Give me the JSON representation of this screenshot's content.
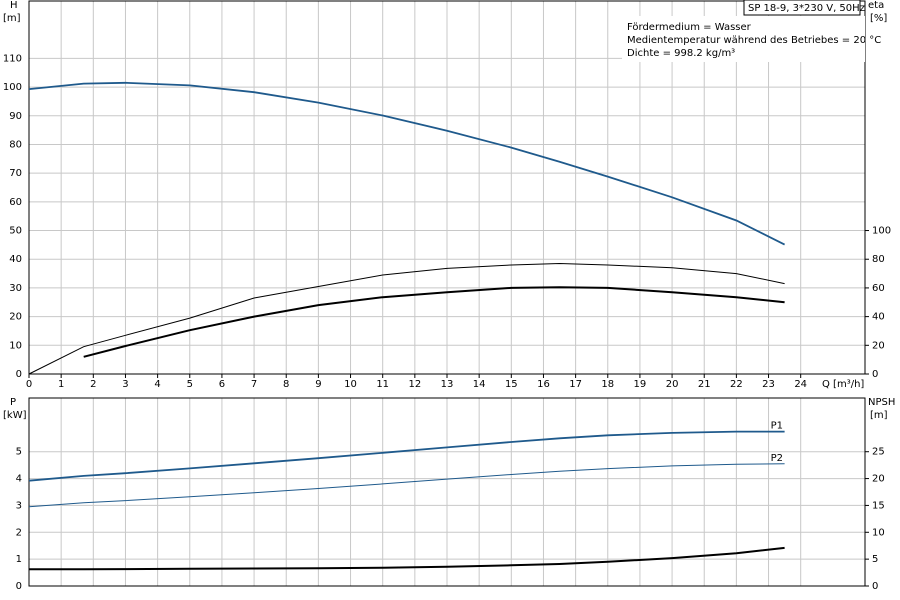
{
  "chart_data": [
    {
      "type": "line",
      "title": "SP 18-9, 3*230 V, 50Hz",
      "annotations": [
        "Fördermedium = Wasser",
        "Medientemperatur während des Betriebes = 20 °C",
        "Dichte = 998.2 kg/m³"
      ],
      "ylabel": "H",
      "ylabel_unit": "[m]",
      "y2label": "eta",
      "y2label_unit": "[%]",
      "xlabel": "Q [m³/h]",
      "x": [
        0,
        1.7,
        3,
        5,
        7,
        9,
        11,
        13,
        15,
        16.5,
        18,
        20,
        22,
        23.5
      ],
      "xlim": [
        0,
        26
      ],
      "xticks": [
        0,
        1,
        2,
        3,
        4,
        5,
        6,
        7,
        8,
        9,
        10,
        11,
        12,
        13,
        14,
        15,
        16,
        17,
        18,
        19,
        20,
        21,
        22,
        23,
        24
      ],
      "ylim": [
        0,
        130
      ],
      "yticks": [
        0,
        10,
        20,
        30,
        40,
        50,
        60,
        70,
        80,
        90,
        100,
        110
      ],
      "y2lim": [
        0,
        260
      ],
      "y2ticks": [
        0,
        20,
        40,
        60,
        80,
        100
      ],
      "grid": true,
      "series": [
        {
          "color": "#1f5a8c",
          "line_width": 1.8,
          "values": [
            99.3,
            101.2,
            101.5,
            100.6,
            98.2,
            94.6,
            90.1,
            84.8,
            78.9,
            74,
            68.8,
            61.6,
            53.5,
            45.1
          ]
        },
        {
          "color": "#000000",
          "line_width": 1,
          "axis": "y2",
          "values": [
            0,
            19,
            27,
            39,
            53,
            61,
            69,
            73.6,
            76,
            77,
            76,
            74,
            70,
            63
          ]
        },
        {
          "color": "#000000",
          "line_width": 2,
          "axis": "y2",
          "values": [
            null,
            12,
            19.5,
            30.5,
            40,
            48,
            53.5,
            57,
            60,
            60.4,
            60,
            57,
            53.5,
            50
          ]
        }
      ]
    },
    {
      "type": "line",
      "ylabel": "P",
      "ylabel_unit": "[kW]",
      "y2label": "NPSH",
      "y2label_unit": "[m]",
      "x": [
        0,
        1.7,
        3,
        5,
        7,
        9,
        11,
        13,
        15,
        16.5,
        18,
        20,
        22,
        23.5
      ],
      "xlim": [
        0,
        26
      ],
      "ylim": [
        0,
        7
      ],
      "yticks": [
        0,
        1,
        2,
        3,
        4,
        5
      ],
      "y2lim": [
        0,
        35
      ],
      "y2ticks": [
        0,
        5,
        10,
        15,
        20,
        25
      ],
      "grid": true,
      "series": [
        {
          "name": "P1",
          "color": "#1f5a8c",
          "line_width": 1.8,
          "values": [
            3.92,
            4.1,
            4.2,
            4.38,
            4.57,
            4.76,
            4.96,
            5.16,
            5.36,
            5.5,
            5.61,
            5.7,
            5.75,
            5.75
          ]
        },
        {
          "name": "P2",
          "color": "#1f5a8c",
          "line_width": 1,
          "values": [
            2.95,
            3.1,
            3.18,
            3.32,
            3.47,
            3.63,
            3.8,
            3.98,
            4.15,
            4.27,
            4.37,
            4.47,
            4.53,
            4.55
          ]
        },
        {
          "color": "#000000",
          "line_width": 2,
          "axis": "y2",
          "values": [
            3.1,
            3.1,
            3.15,
            3.2,
            3.25,
            3.3,
            3.4,
            3.6,
            3.85,
            4.1,
            4.5,
            5.2,
            6.1,
            7.1
          ]
        }
      ]
    }
  ]
}
